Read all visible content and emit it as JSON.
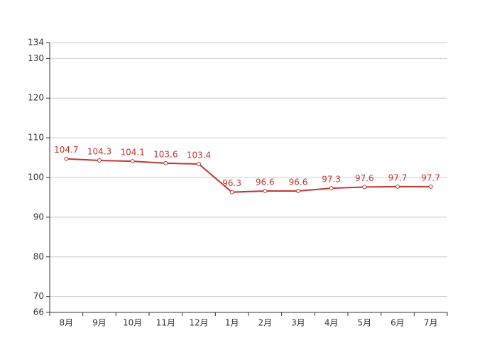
{
  "chart_data": {
    "type": "line",
    "categories": [
      "8月",
      "9月",
      "10月",
      "11月",
      "12月",
      "1月",
      "2月",
      "3月",
      "4月",
      "5月",
      "6月",
      "7月"
    ],
    "values": [
      104.7,
      104.3,
      104.1,
      103.6,
      103.4,
      96.3,
      96.6,
      96.6,
      97.3,
      97.6,
      97.7,
      97.7
    ],
    "color": "#c23531",
    "ylim": [
      66,
      134
    ],
    "yticks": [
      66,
      70,
      80,
      90,
      100,
      110,
      120,
      130,
      134
    ],
    "grid": true
  }
}
